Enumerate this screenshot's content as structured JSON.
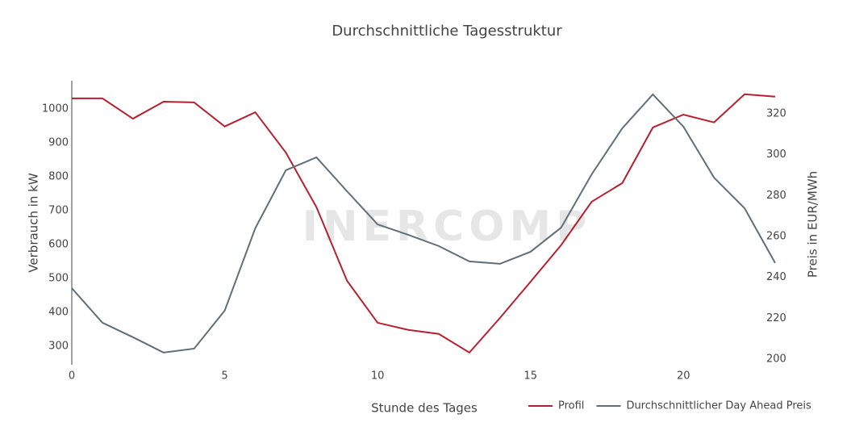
{
  "chart_data": {
    "type": "line",
    "title": "Durchschnittliche Tagesstruktur",
    "xlabel": "Stunde des Tages",
    "ylabel": "Verbrauch in kW",
    "y2label": "Preis in EUR/MWh",
    "watermark": "INERCOMP",
    "x": [
      0,
      1,
      2,
      3,
      4,
      5,
      6,
      7,
      8,
      9,
      10,
      11,
      12,
      13,
      14,
      15,
      16,
      17,
      18,
      19,
      20,
      21,
      22,
      23
    ],
    "xlim": [
      0,
      23
    ],
    "xticks": [
      0,
      5,
      10,
      15,
      20
    ],
    "ylim": [
      245,
      1083
    ],
    "yticks": [
      300,
      400,
      500,
      600,
      700,
      800,
      900,
      1000
    ],
    "y2lim": [
      197.2,
      336.2
    ],
    "y2ticks": [
      200,
      220,
      240,
      260,
      280,
      300,
      320
    ],
    "grid": false,
    "legend": "bottom-right",
    "series": [
      {
        "name": "Profil",
        "color": "#b5202e",
        "values": [
          1031,
          1031,
          971,
          1021,
          1019,
          948,
          990,
          871,
          710,
          493,
          369,
          348,
          336,
          281,
          383,
          490,
          598,
          726,
          781,
          945,
          983,
          960,
          1043,
          1036
        ]
      },
      {
        "name": "Durchschnittlicher Day Ahead Preis",
        "color": "#5f6f7a",
        "axis": "y2",
        "values": [
          234.7,
          217.8,
          210.7,
          203.2,
          205.1,
          223.7,
          264.0,
          292.4,
          298.7,
          282.1,
          265.9,
          260.8,
          255.3,
          247.8,
          246.6,
          252.5,
          264.3,
          290.4,
          312.9,
          329.5,
          313.7,
          288.8,
          273.8,
          247.0
        ]
      }
    ]
  }
}
